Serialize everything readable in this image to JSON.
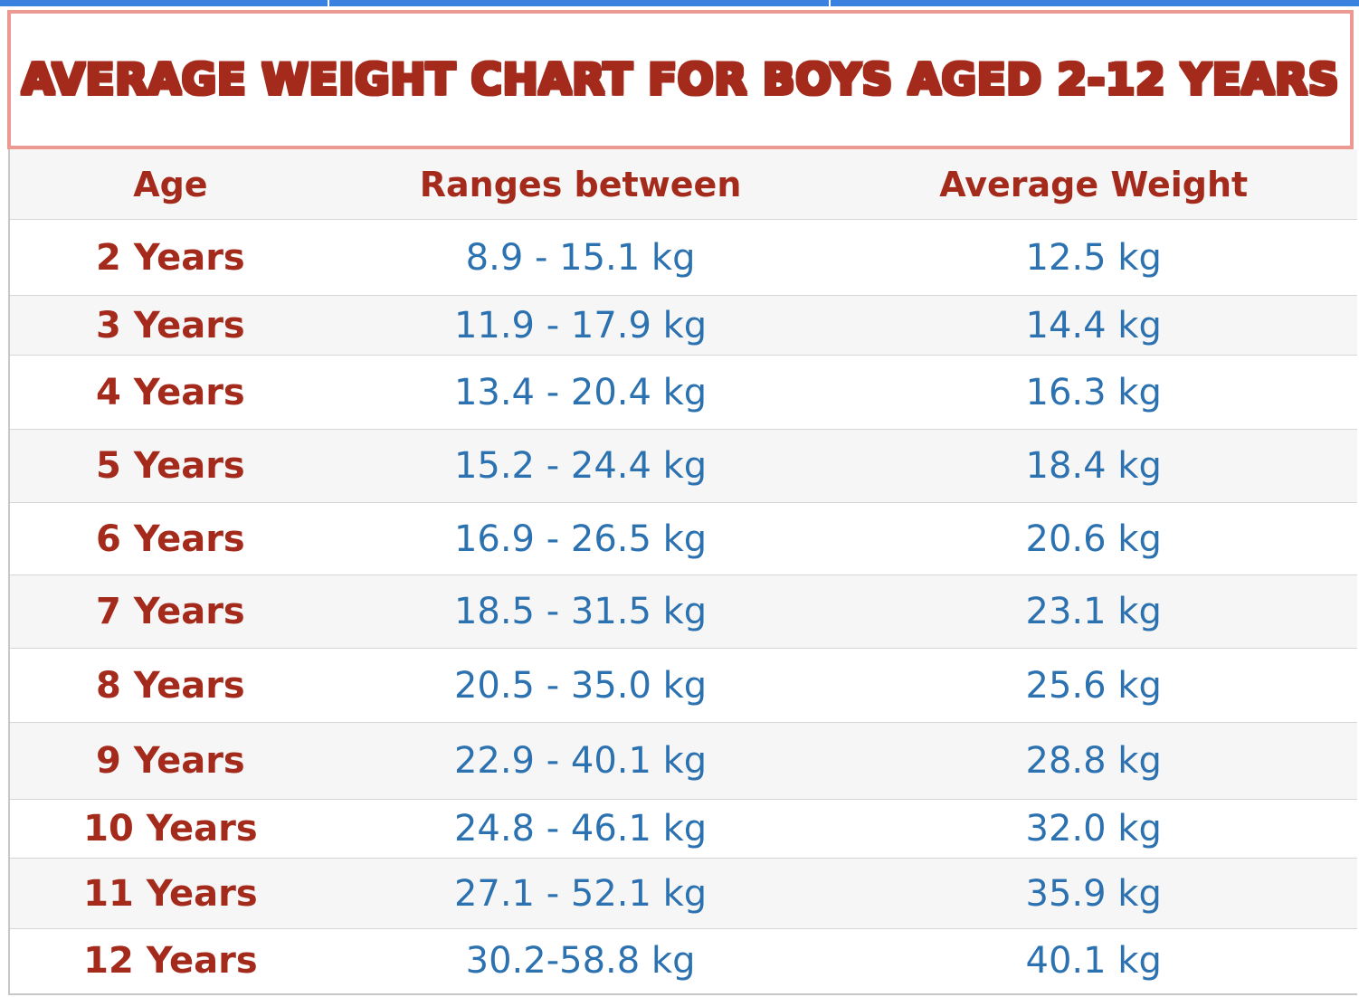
{
  "title": "AVERAGE WEIGHT CHART FOR BOYS AGED 2-12 YEARS",
  "colors": {
    "title_red": "#a42a1c",
    "title_border": "#ec9a91",
    "value_blue": "#2d72b0",
    "stripe": "#f6f6f6"
  },
  "chart_data": {
    "type": "table",
    "title": "AVERAGE WEIGHT CHART FOR BOYS AGED 2-12 YEARS",
    "columns": [
      "Age",
      "Ranges between",
      "Average Weight"
    ],
    "rows": [
      {
        "age": "2 Years",
        "range": "8.9 - 15.1 kg",
        "average": "12.5 kg"
      },
      {
        "age": "3 Years",
        "range": "11.9 - 17.9 kg",
        "average": "14.4 kg"
      },
      {
        "age": "4 Years",
        "range": "13.4 - 20.4 kg",
        "average": "16.3 kg"
      },
      {
        "age": "5 Years",
        "range": "15.2 - 24.4 kg",
        "average": "18.4 kg"
      },
      {
        "age": "6 Years",
        "range": "16.9 - 26.5 kg",
        "average": "20.6 kg"
      },
      {
        "age": "7 Years",
        "range": "18.5 - 31.5 kg",
        "average": "23.1 kg"
      },
      {
        "age": "8 Years",
        "range": "20.5 - 35.0 kg",
        "average": "25.6 kg"
      },
      {
        "age": "9 Years",
        "range": "22.9 - 40.1 kg",
        "average": "28.8 kg"
      },
      {
        "age": "10 Years",
        "range": "24.8 - 46.1 kg",
        "average": "32.0 kg"
      },
      {
        "age": "11 Years",
        "range": "27.1 - 52.1 kg",
        "average": "35.9 kg"
      },
      {
        "age": "12 Years",
        "range": "30.2-58.8 kg",
        "average": "40.1 kg"
      }
    ]
  }
}
